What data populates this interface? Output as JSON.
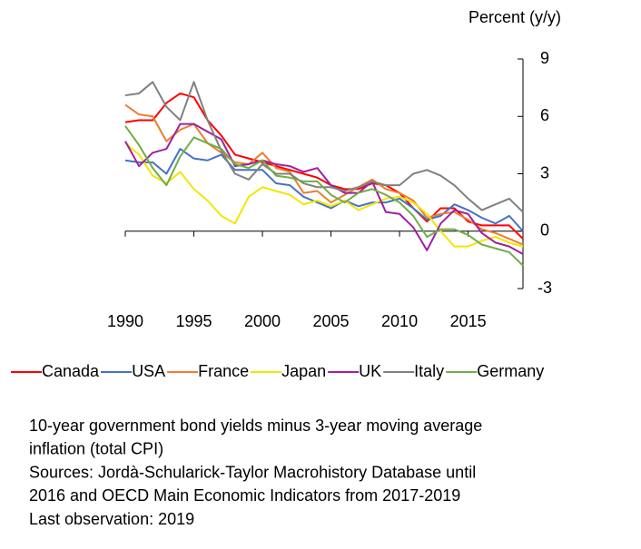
{
  "chart_data": {
    "type": "line",
    "y_axis_label": "Percent (y/y)",
    "x": [
      1990,
      1991,
      1992,
      1993,
      1994,
      1995,
      1996,
      1997,
      1998,
      1999,
      2000,
      2001,
      2002,
      2003,
      2004,
      2005,
      2006,
      2007,
      2008,
      2009,
      2010,
      2011,
      2012,
      2013,
      2014,
      2015,
      2016,
      2017,
      2018,
      2019
    ],
    "xlim": [
      1990,
      2019
    ],
    "xticks": [
      1990,
      1995,
      2000,
      2005,
      2010,
      2015
    ],
    "ylim": [
      -3,
      9
    ],
    "yticks": [
      -3,
      0,
      3,
      6,
      9
    ],
    "y_axis_side": "right",
    "legend": "bottom",
    "series": [
      {
        "name": "Canada",
        "color": "#ff0000",
        "values": [
          5.7,
          5.8,
          5.8,
          6.7,
          7.2,
          7.0,
          5.8,
          5.0,
          4.0,
          3.8,
          3.6,
          3.4,
          3.2,
          3.0,
          2.8,
          2.4,
          2.2,
          2.2,
          2.5,
          2.4,
          2.0,
          1.2,
          0.5,
          1.2,
          1.2,
          0.5,
          0.3,
          0.3,
          0.3,
          -0.4
        ]
      },
      {
        "name": "USA",
        "color": "#4472c4",
        "values": [
          3.7,
          3.6,
          3.6,
          3.0,
          4.3,
          3.8,
          3.7,
          4.0,
          3.2,
          3.2,
          3.2,
          2.5,
          2.4,
          1.8,
          1.5,
          1.2,
          1.6,
          1.3,
          1.5,
          1.5,
          1.7,
          1.2,
          0.6,
          0.8,
          1.4,
          1.1,
          0.7,
          0.4,
          0.8,
          0.0
        ]
      },
      {
        "name": "France",
        "color": "#ed7d31",
        "values": [
          6.6,
          6.1,
          6.0,
          4.7,
          5.3,
          5.6,
          4.6,
          4.1,
          3.6,
          3.5,
          4.1,
          3.3,
          3.1,
          2.0,
          2.1,
          1.5,
          1.9,
          2.3,
          2.7,
          2.2,
          2.0,
          1.6,
          0.7,
          0.9,
          1.0,
          0.6,
          0.1,
          -0.1,
          -0.4,
          -0.7
        ]
      },
      {
        "name": "Japan",
        "color": "#f2e600",
        "values": [
          4.6,
          4.0,
          2.9,
          2.5,
          3.1,
          2.2,
          1.6,
          0.8,
          0.4,
          1.8,
          2.3,
          2.1,
          1.9,
          1.4,
          1.6,
          1.3,
          1.6,
          1.1,
          1.4,
          1.7,
          1.8,
          1.5,
          0.9,
          0.0,
          -0.8,
          -0.8,
          -0.5,
          -0.3,
          -0.6,
          -0.8
        ]
      },
      {
        "name": "UK",
        "color": "#a020a0",
        "values": [
          4.7,
          3.4,
          4.1,
          4.3,
          5.6,
          5.6,
          5.2,
          4.8,
          3.4,
          3.5,
          3.7,
          3.5,
          3.4,
          3.1,
          3.3,
          2.4,
          2.0,
          2.0,
          2.6,
          1.0,
          0.9,
          0.2,
          -1.0,
          0.4,
          1.1,
          0.9,
          -0.1,
          -0.6,
          -0.8,
          -1.2
        ]
      },
      {
        "name": "Italy",
        "color": "#808080",
        "values": [
          7.1,
          7.2,
          7.8,
          6.5,
          5.8,
          7.8,
          5.8,
          4.2,
          3.0,
          2.7,
          3.5,
          3.0,
          3.0,
          2.5,
          2.3,
          2.3,
          2.1,
          2.3,
          2.6,
          2.4,
          2.4,
          3.0,
          3.2,
          2.9,
          2.4,
          1.7,
          1.1,
          1.4,
          1.7,
          1.0
        ]
      },
      {
        "name": "Germany",
        "color": "#70ad47",
        "values": [
          5.5,
          4.5,
          3.3,
          2.4,
          3.9,
          4.9,
          4.6,
          4.3,
          3.5,
          3.3,
          3.7,
          2.9,
          2.8,
          2.6,
          2.6,
          1.9,
          1.5,
          2.0,
          2.2,
          1.9,
          1.5,
          0.8,
          -0.3,
          0.1,
          0.1,
          -0.2,
          -0.7,
          -0.9,
          -1.1,
          -1.8
        ]
      }
    ],
    "notes": [
      "10-year government bond yields minus 3-year moving average",
      "inflation (total CPI)",
      "Sources: Jordà-Schularick-Taylor Macrohistory Database until",
      "2016 and OECD Main Economic Indicators from 2017-2019",
      "Last observation: 2019"
    ]
  }
}
